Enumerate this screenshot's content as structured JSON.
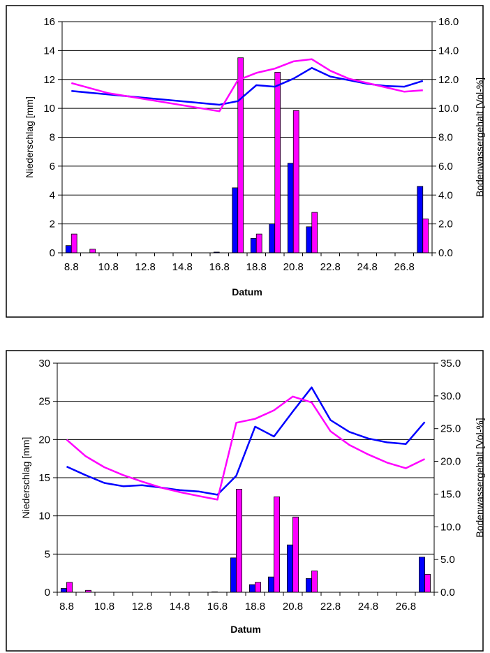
{
  "chart_data": [
    {
      "type": "bar+line",
      "title": "",
      "xlabel": "Datum",
      "ylabel": "Niederschlag [mm]",
      "y2label": "Bodenwassergehalt [Vol-%]",
      "ylim": [
        0,
        16
      ],
      "yticks": [
        "0",
        "2",
        "4",
        "6",
        "8",
        "10",
        "12",
        "14",
        "16"
      ],
      "y2lim": [
        0,
        16
      ],
      "y2ticks": [
        "0.0",
        "2.0",
        "4.0",
        "6.0",
        "8.0",
        "10.0",
        "12.0",
        "14.0",
        "16.0"
      ],
      "categories": [
        "8.8",
        "9.8",
        "10.8",
        "11.8",
        "12.8",
        "13.8",
        "14.8",
        "15.8",
        "16.8",
        "17.8",
        "18.8",
        "19.8",
        "20.8",
        "21.8",
        "22.8",
        "23.8",
        "24.8",
        "25.8",
        "26.8",
        "27.8"
      ],
      "xtick_labels": [
        "8.8",
        "10.8",
        "12.8",
        "14.8",
        "16.8",
        "18.8",
        "20.8",
        "22.8",
        "24.8",
        "26.8"
      ],
      "grid": true,
      "legend": "none",
      "bar_series": [
        {
          "color": "#0000ff",
          "values": [
            0.5,
            0,
            0,
            0,
            0,
            0,
            0,
            0,
            0.05,
            4.5,
            1.0,
            2.0,
            6.2,
            1.8,
            0,
            0,
            0,
            0,
            0,
            4.6
          ]
        },
        {
          "color": "#ff00ff",
          "values": [
            1.3,
            0.25,
            0,
            0,
            0,
            0,
            0,
            0,
            0,
            13.5,
            1.3,
            12.5,
            9.85,
            2.8,
            0,
            0,
            0,
            0,
            0,
            2.35
          ]
        }
      ],
      "line_series": [
        {
          "color": "#0000ff",
          "values": [
            11.2,
            null,
            null,
            null,
            null,
            null,
            null,
            null,
            10.25,
            10.5,
            11.6,
            11.5,
            12.05,
            12.8,
            12.2,
            11.95,
            11.7,
            11.55,
            11.5,
            11.9
          ]
        },
        {
          "color": "#ff00ff",
          "values": [
            11.75,
            11.4,
            11.05,
            null,
            null,
            null,
            null,
            null,
            9.8,
            11.95,
            12.45,
            12.75,
            13.25,
            13.4,
            12.6,
            12.05,
            11.75,
            11.45,
            11.15,
            11.25
          ]
        }
      ]
    },
    {
      "type": "bar+line",
      "title": "",
      "xlabel": "Datum",
      "ylabel": "Niederschlag [mm]",
      "y2label": "Bodenwassergehalt [Vol-%]",
      "ylim": [
        0,
        30
      ],
      "yticks": [
        "0",
        "5",
        "10",
        "15",
        "20",
        "25",
        "30"
      ],
      "y2lim": [
        0,
        35
      ],
      "y2ticks": [
        "0.0",
        "5.0",
        "10.0",
        "15.0",
        "20.0",
        "25.0",
        "30.0",
        "35.0"
      ],
      "categories": [
        "8.8",
        "9.8",
        "10.8",
        "11.8",
        "12.8",
        "13.8",
        "14.8",
        "15.8",
        "16.8",
        "17.8",
        "18.8",
        "19.8",
        "20.8",
        "21.8",
        "22.8",
        "23.8",
        "24.8",
        "25.8",
        "26.8",
        "27.8"
      ],
      "xtick_labels": [
        "8.8",
        "10.8",
        "12.8",
        "14.8",
        "16.8",
        "18.8",
        "20.8",
        "22.8",
        "24.8",
        "26.8"
      ],
      "grid": true,
      "legend": "none",
      "bar_series": [
        {
          "color": "#0000ff",
          "values": [
            0.5,
            0,
            0,
            0,
            0,
            0,
            0,
            0,
            0.05,
            4.5,
            1.0,
            2.0,
            6.2,
            1.8,
            0,
            0,
            0,
            0,
            0,
            4.6
          ]
        },
        {
          "color": "#ff00ff",
          "values": [
            1.3,
            0.25,
            0,
            0,
            0,
            0,
            0,
            0,
            0,
            13.5,
            1.3,
            12.5,
            9.85,
            2.8,
            0,
            0,
            0,
            0,
            0,
            2.35
          ]
        }
      ],
      "line_series": [
        {
          "color": "#0000ff",
          "values": [
            19.2,
            17.9,
            16.7,
            16.2,
            16.35,
            16.0,
            15.6,
            15.4,
            14.9,
            17.8,
            25.3,
            23.8,
            27.6,
            31.3,
            26.3,
            24.5,
            23.5,
            22.9,
            22.65,
            26.0
          ]
        },
        {
          "color": "#ff00ff",
          "values": [
            23.3,
            20.8,
            19.1,
            17.9,
            16.9,
            16.0,
            15.3,
            14.7,
            14.15,
            25.9,
            26.5,
            27.8,
            29.9,
            29.0,
            24.6,
            22.5,
            21.05,
            19.8,
            18.95,
            20.35
          ]
        }
      ]
    }
  ]
}
